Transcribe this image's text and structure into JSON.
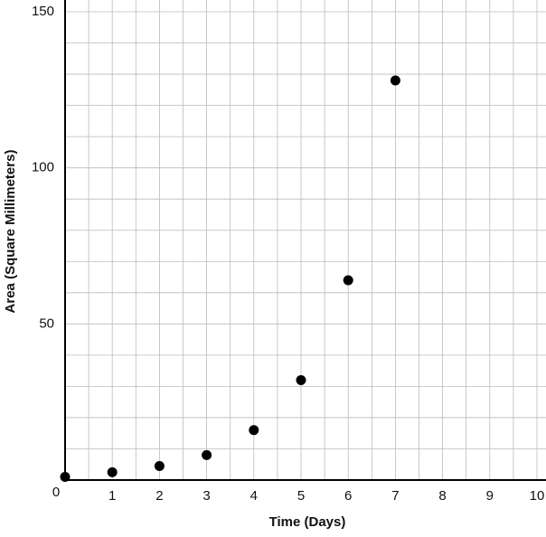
{
  "chart_data": {
    "type": "scatter",
    "x_label": "Time (Days)",
    "y_label": "Area (Square Millimeters)",
    "x": [
      0,
      1,
      2,
      3,
      4,
      5,
      6,
      7
    ],
    "values": [
      1,
      2.5,
      4.5,
      8,
      16,
      32,
      64,
      128
    ],
    "color": "#000000",
    "xlim": [
      0,
      10
    ],
    "ylim": [
      0,
      150
    ],
    "origin_label": "0",
    "xticks": [
      1,
      2,
      3,
      4,
      5,
      6,
      7,
      8,
      9,
      10
    ],
    "yticks": [
      50,
      100,
      150
    ],
    "xgrid": [
      0.5,
      1,
      1.5,
      2,
      2.5,
      3,
      3.5,
      4,
      4.5,
      5,
      5.5,
      6,
      6.5,
      7,
      7.5,
      8,
      8.5,
      9,
      9.5,
      10
    ],
    "ygrid": [
      10,
      20,
      30,
      40,
      50,
      60,
      70,
      80,
      90,
      100,
      110,
      120,
      130,
      140,
      150
    ],
    "grid": true
  }
}
